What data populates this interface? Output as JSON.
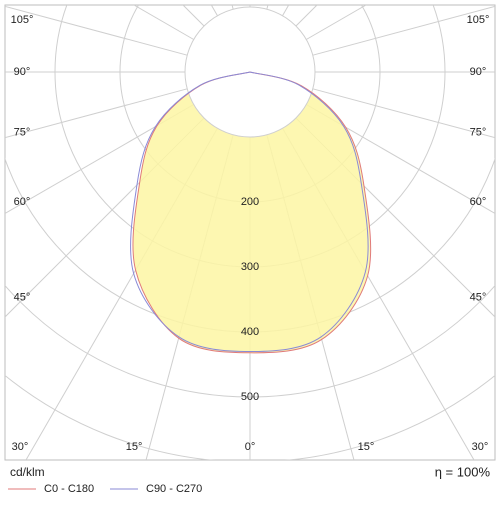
{
  "chart_data": {
    "type": "polar",
    "x": [
      -90,
      -75,
      -60,
      -45,
      -30,
      -15,
      0,
      15,
      30,
      45,
      60,
      75,
      90
    ],
    "series": [
      {
        "name": "C0 - C180",
        "color": "#e07a7a",
        "values": [
          0,
          78,
          165,
          240,
          352,
          424,
          432,
          426,
          362,
          248,
          170,
          82,
          0
        ]
      },
      {
        "name": "C90 - C270",
        "color": "#8a8ad6",
        "values": [
          0,
          80,
          168,
          246,
          358,
          422,
          430,
          422,
          355,
          242,
          166,
          78,
          0
        ]
      }
    ],
    "fill": "#fdf6a3",
    "rticks": [
      200,
      300,
      400,
      500
    ],
    "angle_ticks": [
      {
        "value": -105,
        "label": "105°"
      },
      {
        "value": -90,
        "label": "90°"
      },
      {
        "value": -75,
        "label": "75°"
      },
      {
        "value": -60,
        "label": "60°"
      },
      {
        "value": -45,
        "label": "45°"
      },
      {
        "value": -30,
        "label": "30°"
      },
      {
        "value": -15,
        "label": "15°"
      },
      {
        "value": 0,
        "label": "0°"
      },
      {
        "value": 15,
        "label": "15°"
      },
      {
        "value": 30,
        "label": "30°"
      },
      {
        "value": 45,
        "label": "45°"
      },
      {
        "value": 60,
        "label": "60°"
      },
      {
        "value": 75,
        "label": "75°"
      },
      {
        "value": 90,
        "label": "90°"
      },
      {
        "value": 105,
        "label": "105°"
      }
    ],
    "unit": "cd/klm",
    "efficiency": "η = 100%"
  }
}
